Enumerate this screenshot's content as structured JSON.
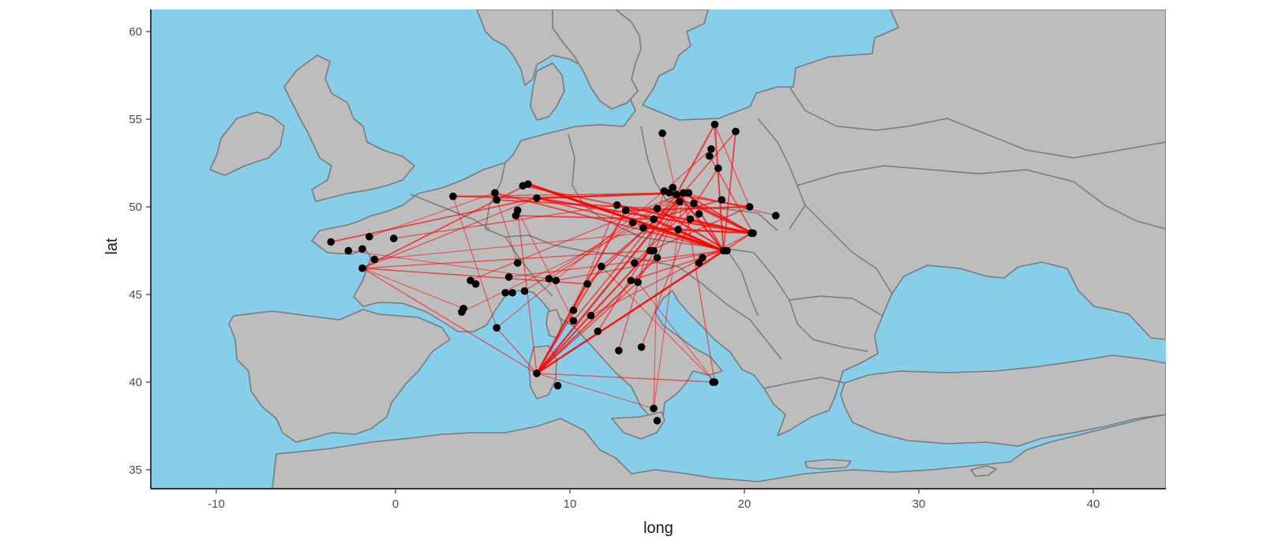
{
  "chart_data": {
    "type": "scatter",
    "subtype": "map-network",
    "xlabel": "long",
    "ylabel": "lat",
    "xlim": [
      -14.2,
      44
    ],
    "ylim": [
      34,
      61.3
    ],
    "x_ticks": [
      -10,
      0,
      10,
      20,
      30,
      40
    ],
    "y_ticks": [
      35,
      40,
      45,
      50,
      55,
      60
    ],
    "x_tick_labels": [
      "-10",
      "0",
      "10",
      "20",
      "30",
      "40"
    ],
    "y_tick_labels": [
      "35",
      "40",
      "45",
      "50",
      "55",
      "60"
    ],
    "grid": false,
    "colors": {
      "sea": "#87ceeb",
      "land": "#bdbdbd",
      "border": "#7a7a7a",
      "route": "#ff0000",
      "city": "#000000",
      "axis": "#000000"
    },
    "points": [
      {
        "long": -3.7,
        "lat": 48.0
      },
      {
        "long": -2.7,
        "lat": 47.5
      },
      {
        "long": -1.9,
        "lat": 47.6
      },
      {
        "long": -1.5,
        "lat": 48.3
      },
      {
        "long": -1.9,
        "lat": 46.5
      },
      {
        "long": -1.2,
        "lat": 47.0
      },
      {
        "long": -0.1,
        "lat": 48.2
      },
      {
        "long": 3.3,
        "lat": 50.6
      },
      {
        "long": 5.7,
        "lat": 50.8
      },
      {
        "long": 5.8,
        "lat": 50.4
      },
      {
        "long": 7.3,
        "lat": 51.2
      },
      {
        "long": 7.6,
        "lat": 51.3
      },
      {
        "long": 8.1,
        "lat": 50.5
      },
      {
        "long": 7.0,
        "lat": 49.8
      },
      {
        "long": 6.9,
        "lat": 49.5
      },
      {
        "long": 4.3,
        "lat": 45.8
      },
      {
        "long": 4.6,
        "lat": 45.6
      },
      {
        "long": 3.8,
        "lat": 44.0
      },
      {
        "long": 3.9,
        "lat": 44.2
      },
      {
        "long": 5.8,
        "lat": 43.1
      },
      {
        "long": 6.5,
        "lat": 46.0
      },
      {
        "long": 7.0,
        "lat": 46.8
      },
      {
        "long": 6.3,
        "lat": 45.1
      },
      {
        "long": 6.7,
        "lat": 45.1
      },
      {
        "long": 7.4,
        "lat": 45.2
      },
      {
        "long": 8.8,
        "lat": 45.9
      },
      {
        "long": 9.2,
        "lat": 45.8
      },
      {
        "long": 11.0,
        "lat": 45.6
      },
      {
        "long": 11.8,
        "lat": 46.6
      },
      {
        "long": 10.2,
        "lat": 44.1
      },
      {
        "long": 10.2,
        "lat": 43.5
      },
      {
        "long": 11.2,
        "lat": 43.8
      },
      {
        "long": 11.6,
        "lat": 42.9
      },
      {
        "long": 12.8,
        "lat": 41.8
      },
      {
        "long": 14.1,
        "lat": 42.0
      },
      {
        "long": 8.1,
        "lat": 40.5
      },
      {
        "long": 9.3,
        "lat": 39.8
      },
      {
        "long": 14.8,
        "lat": 38.5
      },
      {
        "long": 15.0,
        "lat": 37.8
      },
      {
        "long": 18.2,
        "lat": 40.0
      },
      {
        "long": 18.3,
        "lat": 40.0
      },
      {
        "long": 12.7,
        "lat": 50.1
      },
      {
        "long": 13.2,
        "lat": 49.8
      },
      {
        "long": 13.6,
        "lat": 49.1
      },
      {
        "long": 14.2,
        "lat": 48.8
      },
      {
        "long": 14.6,
        "lat": 47.5
      },
      {
        "long": 14.8,
        "lat": 47.5
      },
      {
        "long": 13.7,
        "lat": 46.8
      },
      {
        "long": 13.5,
        "lat": 45.8
      },
      {
        "long": 13.9,
        "lat": 45.7
      },
      {
        "long": 15.0,
        "lat": 47.1
      },
      {
        "long": 14.8,
        "lat": 49.3
      },
      {
        "long": 15.0,
        "lat": 49.9
      },
      {
        "long": 15.4,
        "lat": 50.9
      },
      {
        "long": 15.7,
        "lat": 50.8
      },
      {
        "long": 15.9,
        "lat": 51.1
      },
      {
        "long": 16.1,
        "lat": 50.7
      },
      {
        "long": 16.3,
        "lat": 50.3
      },
      {
        "long": 16.5,
        "lat": 50.8
      },
      {
        "long": 16.8,
        "lat": 50.8
      },
      {
        "long": 17.1,
        "lat": 50.2
      },
      {
        "long": 17.4,
        "lat": 49.6
      },
      {
        "long": 16.2,
        "lat": 48.7
      },
      {
        "long": 16.9,
        "lat": 49.3
      },
      {
        "long": 18.0,
        "lat": 52.9
      },
      {
        "long": 18.5,
        "lat": 52.2
      },
      {
        "long": 18.1,
        "lat": 53.3
      },
      {
        "long": 18.3,
        "lat": 54.7
      },
      {
        "long": 19.5,
        "lat": 54.3
      },
      {
        "long": 15.3,
        "lat": 54.2
      },
      {
        "long": 18.7,
        "lat": 50.4
      },
      {
        "long": 18.8,
        "lat": 47.5
      },
      {
        "long": 19.0,
        "lat": 47.5
      },
      {
        "long": 17.6,
        "lat": 47.1
      },
      {
        "long": 17.4,
        "lat": 46.8
      },
      {
        "long": 20.3,
        "lat": 50.0
      },
      {
        "long": 20.4,
        "lat": 48.5
      },
      {
        "long": 20.5,
        "lat": 48.5
      },
      {
        "long": 21.8,
        "lat": 49.5
      }
    ],
    "links": [
      {
        "from": [
          7.6,
          51.3
        ],
        "to": [
          18.8,
          47.5
        ],
        "weight": 3.2
      },
      {
        "from": [
          8.1,
          50.5
        ],
        "to": [
          16.5,
          50.8
        ],
        "weight": 2.6
      },
      {
        "from": [
          8.1,
          50.5
        ],
        "to": [
          20.4,
          48.5
        ],
        "weight": 2.4
      },
      {
        "from": [
          3.3,
          50.6
        ],
        "to": [
          8.1,
          50.5
        ],
        "weight": 2.0
      },
      {
        "from": [
          7.3,
          51.2
        ],
        "to": [
          12.7,
          50.1
        ],
        "weight": 1.8
      },
      {
        "from": [
          8.1,
          50.5
        ],
        "to": [
          13.6,
          49.1
        ],
        "weight": 1.8
      },
      {
        "from": [
          12.7,
          50.1
        ],
        "to": [
          20.4,
          48.5
        ],
        "weight": 2.4
      },
      {
        "from": [
          13.2,
          49.8
        ],
        "to": [
          20.3,
          50.0
        ],
        "weight": 2.2
      },
      {
        "from": [
          14.2,
          48.8
        ],
        "to": [
          20.5,
          48.5
        ],
        "weight": 2.4
      },
      {
        "from": [
          14.8,
          49.3
        ],
        "to": [
          18.8,
          47.5
        ],
        "weight": 2.2
      },
      {
        "from": [
          15.0,
          49.9
        ],
        "to": [
          19.0,
          47.5
        ],
        "weight": 2.2
      },
      {
        "from": [
          15.4,
          50.9
        ],
        "to": [
          20.4,
          48.5
        ],
        "weight": 2.2
      },
      {
        "from": [
          15.9,
          51.1
        ],
        "to": [
          18.8,
          47.5
        ],
        "weight": 2.4
      },
      {
        "from": [
          16.1,
          50.7
        ],
        "to": [
          20.3,
          50.0
        ],
        "weight": 2.0
      },
      {
        "from": [
          16.5,
          50.8
        ],
        "to": [
          20.4,
          48.5
        ],
        "weight": 2.0
      },
      {
        "from": [
          16.8,
          50.8
        ],
        "to": [
          18.8,
          47.5
        ],
        "weight": 2.0
      },
      {
        "from": [
          17.1,
          50.2
        ],
        "to": [
          20.5,
          48.5
        ],
        "weight": 2.0
      },
      {
        "from": [
          16.9,
          49.3
        ],
        "to": [
          20.4,
          48.5
        ],
        "weight": 2.0
      },
      {
        "from": [
          16.2,
          48.7
        ],
        "to": [
          18.8,
          47.5
        ],
        "weight": 2.0
      },
      {
        "from": [
          12.7,
          50.1
        ],
        "to": [
          18.8,
          47.5
        ],
        "weight": 2.0
      },
      {
        "from": [
          13.6,
          49.1
        ],
        "to": [
          18.8,
          47.5
        ],
        "weight": 2.0
      },
      {
        "from": [
          14.6,
          47.5
        ],
        "to": [
          20.3,
          50.0
        ],
        "weight": 1.6
      },
      {
        "from": [
          15.0,
          47.1
        ],
        "to": [
          16.5,
          50.8
        ],
        "weight": 1.6
      },
      {
        "from": [
          13.7,
          46.8
        ],
        "to": [
          17.1,
          50.2
        ],
        "weight": 1.6
      },
      {
        "from": [
          18.3,
          54.7
        ],
        "to": [
          16.1,
          50.7
        ],
        "weight": 2.0
      },
      {
        "from": [
          18.3,
          54.7
        ],
        "to": [
          18.8,
          47.5
        ],
        "weight": 2.0
      },
      {
        "from": [
          19.5,
          54.3
        ],
        "to": [
          18.8,
          47.5
        ],
        "weight": 1.8
      },
      {
        "from": [
          19.5,
          54.3
        ],
        "to": [
          16.5,
          50.8
        ],
        "weight": 1.6
      },
      {
        "from": [
          18.3,
          54.7
        ],
        "to": [
          20.3,
          50.0
        ],
        "weight": 1.4
      },
      {
        "from": [
          18.0,
          52.9
        ],
        "to": [
          20.5,
          48.5
        ],
        "weight": 1.6
      },
      {
        "from": [
          18.5,
          52.2
        ],
        "to": [
          16.2,
          48.7
        ],
        "weight": 1.6
      },
      {
        "from": [
          18.1,
          53.3
        ],
        "to": [
          15.4,
          50.9
        ],
        "weight": 1.4
      },
      {
        "from": [
          18.7,
          50.4
        ],
        "to": [
          14.8,
          49.3
        ],
        "weight": 1.8
      },
      {
        "from": [
          21.8,
          49.5
        ],
        "to": [
          16.5,
          50.8
        ],
        "weight": 1.4
      },
      {
        "from": [
          -3.7,
          48.0
        ],
        "to": [
          8.1,
          50.5
        ],
        "weight": 1.8
      },
      {
        "from": [
          -1.9,
          46.5
        ],
        "to": [
          7.6,
          51.3
        ],
        "weight": 1.8
      },
      {
        "from": [
          -1.9,
          46.5
        ],
        "to": [
          11.0,
          45.6
        ],
        "weight": 1.6
      },
      {
        "from": [
          -1.9,
          46.5
        ],
        "to": [
          14.8,
          47.5
        ],
        "weight": 1.4
      },
      {
        "from": [
          -0.1,
          48.2
        ],
        "to": [
          12.7,
          50.1
        ],
        "weight": 1.4
      },
      {
        "from": [
          -1.2,
          47.0
        ],
        "to": [
          16.2,
          48.7
        ],
        "weight": 1.2
      },
      {
        "from": [
          3.3,
          50.6
        ],
        "to": [
          16.5,
          50.8
        ],
        "weight": 1.4
      },
      {
        "from": [
          5.7,
          50.8
        ],
        "to": [
          18.8,
          47.5
        ],
        "weight": 1.8
      },
      {
        "from": [
          5.8,
          50.4
        ],
        "to": [
          15.0,
          49.9
        ],
        "weight": 1.8
      },
      {
        "from": [
          6.9,
          49.5
        ],
        "to": [
          14.8,
          49.3
        ],
        "weight": 1.8
      },
      {
        "from": [
          8.1,
          40.5
        ],
        "to": [
          16.5,
          50.8
        ],
        "weight": 2.4
      },
      {
        "from": [
          8.1,
          40.5
        ],
        "to": [
          18.8,
          47.5
        ],
        "weight": 2.4
      },
      {
        "from": [
          8.1,
          40.5
        ],
        "to": [
          13.2,
          49.8
        ],
        "weight": 2.2
      },
      {
        "from": [
          8.1,
          40.5
        ],
        "to": [
          14.6,
          47.5
        ],
        "weight": 2.2
      },
      {
        "from": [
          8.1,
          40.5
        ],
        "to": [
          15.0,
          47.1
        ],
        "weight": 2.0
      },
      {
        "from": [
          8.1,
          40.5
        ],
        "to": [
          20.4,
          48.5
        ],
        "weight": 1.8
      },
      {
        "from": [
          8.1,
          40.5
        ],
        "to": [
          11.8,
          46.6
        ],
        "weight": 1.8
      },
      {
        "from": [
          8.1,
          40.5
        ],
        "to": [
          11.0,
          45.6
        ],
        "weight": 1.6
      },
      {
        "from": [
          8.1,
          40.5
        ],
        "to": [
          13.9,
          45.7
        ],
        "weight": 1.6
      },
      {
        "from": [
          8.1,
          40.5
        ],
        "to": [
          18.3,
          40.0
        ],
        "weight": 1.4
      },
      {
        "from": [
          8.1,
          40.5
        ],
        "to": [
          5.8,
          43.1
        ],
        "weight": 1.4
      },
      {
        "from": [
          8.1,
          40.5
        ],
        "to": [
          14.8,
          38.5
        ],
        "weight": 1.2
      },
      {
        "from": [
          8.1,
          40.5
        ],
        "to": [
          -1.9,
          46.5
        ],
        "weight": 1.4
      },
      {
        "from": [
          8.1,
          40.5
        ],
        "to": [
          7.0,
          49.8
        ],
        "weight": 1.4
      },
      {
        "from": [
          18.3,
          40.0
        ],
        "to": [
          16.5,
          50.8
        ],
        "weight": 1.4
      },
      {
        "from": [
          18.3,
          40.0
        ],
        "to": [
          11.8,
          46.6
        ],
        "weight": 1.2
      },
      {
        "from": [
          18.3,
          40.0
        ],
        "to": [
          13.9,
          45.7
        ],
        "weight": 1.2
      },
      {
        "from": [
          14.8,
          38.5
        ],
        "to": [
          15.0,
          47.1
        ],
        "weight": 1.2
      },
      {
        "from": [
          14.8,
          38.5
        ],
        "to": [
          16.5,
          50.8
        ],
        "weight": 1.2
      },
      {
        "from": [
          11.0,
          45.6
        ],
        "to": [
          16.5,
          50.8
        ],
        "weight": 1.8
      },
      {
        "from": [
          11.8,
          46.6
        ],
        "to": [
          16.8,
          50.8
        ],
        "weight": 1.6
      },
      {
        "from": [
          13.9,
          45.7
        ],
        "to": [
          16.5,
          50.8
        ],
        "weight": 1.6
      },
      {
        "from": [
          13.5,
          45.8
        ],
        "to": [
          18.8,
          47.5
        ],
        "weight": 1.6
      },
      {
        "from": [
          11.6,
          42.9
        ],
        "to": [
          16.5,
          50.8
        ],
        "weight": 1.6
      },
      {
        "from": [
          10.2,
          43.5
        ],
        "to": [
          16.1,
          50.7
        ],
        "weight": 1.6
      },
      {
        "from": [
          12.8,
          41.8
        ],
        "to": [
          15.4,
          50.9
        ],
        "weight": 1.4
      },
      {
        "from": [
          14.1,
          42.0
        ],
        "to": [
          16.9,
          49.3
        ],
        "weight": 1.4
      },
      {
        "from": [
          11.2,
          43.8
        ],
        "to": [
          20.4,
          48.5
        ],
        "weight": 1.4
      },
      {
        "from": [
          10.2,
          44.1
        ],
        "to": [
          12.7,
          50.1
        ],
        "weight": 1.4
      },
      {
        "from": [
          8.8,
          45.9
        ],
        "to": [
          16.5,
          50.8
        ],
        "weight": 1.4
      },
      {
        "from": [
          9.2,
          45.8
        ],
        "to": [
          18.8,
          47.5
        ],
        "weight": 1.4
      },
      {
        "from": [
          4.3,
          45.8
        ],
        "to": [
          16.5,
          50.8
        ],
        "weight": 1.4
      },
      {
        "from": [
          3.8,
          44.0
        ],
        "to": [
          14.8,
          49.3
        ],
        "weight": 1.2
      },
      {
        "from": [
          5.8,
          43.1
        ],
        "to": [
          15.4,
          50.9
        ],
        "weight": 1.2
      },
      {
        "from": [
          6.5,
          46.0
        ],
        "to": [
          18.8,
          47.5
        ],
        "weight": 1.4
      },
      {
        "from": [
          7.4,
          45.2
        ],
        "to": [
          16.1,
          50.7
        ],
        "weight": 1.4
      },
      {
        "from": [
          -1.9,
          46.5
        ],
        "to": [
          8.1,
          50.5
        ],
        "weight": 1.4
      },
      {
        "from": [
          -1.5,
          48.3
        ],
        "to": [
          5.7,
          50.8
        ],
        "weight": 1.2
      },
      {
        "from": [
          -1.9,
          46.5
        ],
        "to": [
          3.9,
          44.2
        ],
        "weight": 1.2
      },
      {
        "from": [
          -2.7,
          47.5
        ],
        "to": [
          8.8,
          45.9
        ],
        "weight": 1.2
      },
      {
        "from": [
          3.3,
          50.6
        ],
        "to": [
          5.8,
          43.1
        ],
        "weight": 1.2
      },
      {
        "from": [
          7.0,
          49.8
        ],
        "to": [
          10.2,
          43.5
        ],
        "weight": 1.2
      },
      {
        "from": [
          5.7,
          50.8
        ],
        "to": [
          7.0,
          46.8
        ],
        "weight": 1.2
      },
      {
        "from": [
          15.3,
          54.2
        ],
        "to": [
          16.1,
          50.7
        ],
        "weight": 1.2
      }
    ]
  },
  "axes": {
    "x_title": "long",
    "y_title": "lat",
    "x_tick_labels": [
      "-10",
      "0",
      "10",
      "20",
      "30",
      "40"
    ],
    "y_tick_labels": [
      "35",
      "40",
      "45",
      "50",
      "55",
      "60"
    ]
  }
}
